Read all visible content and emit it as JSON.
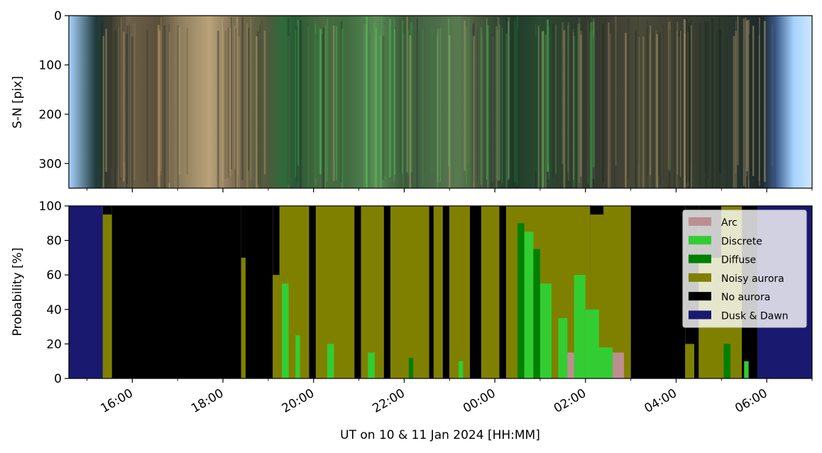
{
  "chart_data": [
    {
      "type": "heatmap",
      "description_role": "keogram",
      "ylabel": "S-N [pix]",
      "ylim": [
        350,
        0
      ],
      "yticks": [
        "0",
        "100",
        "200",
        "300"
      ],
      "x_range_hours": [
        14.6,
        31.0
      ],
      "color_bands": [
        {
          "x": 14.6,
          "color": "#a9d3ff"
        },
        {
          "x": 15.2,
          "color": "#1f3a3a"
        },
        {
          "x": 15.5,
          "color": "#3a3a2e"
        },
        {
          "x": 15.9,
          "color": "#6e6048"
        },
        {
          "x": 16.6,
          "color": "#5a4e3a"
        },
        {
          "x": 17.0,
          "color": "#8a7a5a"
        },
        {
          "x": 17.7,
          "color": "#b9a27a"
        },
        {
          "x": 18.3,
          "color": "#7a6a4e"
        },
        {
          "x": 19.0,
          "color": "#4f5a3c"
        },
        {
          "x": 19.3,
          "color": "#2f6a3a"
        },
        {
          "x": 19.6,
          "color": "#2a5a35"
        },
        {
          "x": 20.2,
          "color": "#4a6a40"
        },
        {
          "x": 20.7,
          "color": "#3f6a3f"
        },
        {
          "x": 21.4,
          "color": "#5a8a55"
        },
        {
          "x": 22.0,
          "color": "#3c5a3a"
        },
        {
          "x": 22.6,
          "color": "#4a6a48"
        },
        {
          "x": 23.2,
          "color": "#5a7a50"
        },
        {
          "x": 23.6,
          "color": "#4a5a40"
        },
        {
          "x": 24.4,
          "color": "#1f3a2a"
        },
        {
          "x": 25.0,
          "color": "#2a4a30"
        },
        {
          "x": 25.8,
          "color": "#2f3a2e"
        },
        {
          "x": 26.4,
          "color": "#3a3c30"
        },
        {
          "x": 27.2,
          "color": "#4a4a38"
        },
        {
          "x": 28.0,
          "color": "#3e4032"
        },
        {
          "x": 29.0,
          "color": "#2e3a2e"
        },
        {
          "x": 29.9,
          "color": "#1e2a2a"
        },
        {
          "x": 30.2,
          "color": "#3a5a8a"
        },
        {
          "x": 30.6,
          "color": "#a9d3ff"
        },
        {
          "x": 31.0,
          "color": "#cfe6ff"
        }
      ]
    },
    {
      "type": "area",
      "stacked": true,
      "ylabel": "Probability [%]",
      "xlabel": "UT on 10 & 11 Jan 2024 [HH:MM]",
      "ylim": [
        0,
        100
      ],
      "yticks": [
        "0",
        "20",
        "40",
        "60",
        "80",
        "100"
      ],
      "xlim_hours": [
        14.6,
        31.0
      ],
      "xticks_hours": [
        16,
        18,
        20,
        22,
        24,
        26,
        28,
        30
      ],
      "xtick_labels": [
        "16:00",
        "18:00",
        "20:00",
        "22:00",
        "00:00",
        "02:00",
        "04:00",
        "06:00"
      ],
      "legend_placement": "top-right",
      "series": [
        {
          "name": "Arc",
          "color": "#bc8f8f"
        },
        {
          "name": "Discrete",
          "color": "#32cd32"
        },
        {
          "name": "Diffuse",
          "color": "#008000"
        },
        {
          "name": "Noisy aurora",
          "color": "#808000"
        },
        {
          "name": "No aurora",
          "color": "#000000"
        },
        {
          "name": "Dusk & Dawn",
          "color": "#191970"
        }
      ],
      "segments": [
        {
          "x0": 14.6,
          "x1": 15.35,
          "class": "Dusk & Dawn",
          "v": 100
        },
        {
          "x0": 15.35,
          "x1": 15.55,
          "class": "Noisy aurora",
          "v": 95
        },
        {
          "x0": 15.55,
          "x1": 18.4,
          "class": "No aurora",
          "v": 100
        },
        {
          "x0": 18.4,
          "x1": 18.5,
          "class": "Noisy aurora",
          "v": 70
        },
        {
          "x0": 18.5,
          "x1": 19.1,
          "class": "No aurora",
          "v": 100
        },
        {
          "x0": 19.1,
          "x1": 19.25,
          "class": "Noisy aurora",
          "v": 60
        },
        {
          "x0": 19.25,
          "x1": 19.9,
          "class": "Noisy aurora",
          "v": 100
        },
        {
          "x0": 19.9,
          "x1": 20.05,
          "class": "No aurora",
          "v": 100
        },
        {
          "x0": 20.05,
          "x1": 20.9,
          "class": "Noisy aurora",
          "v": 100
        },
        {
          "x0": 20.9,
          "x1": 21.05,
          "class": "No aurora",
          "v": 100
        },
        {
          "x0": 21.05,
          "x1": 21.55,
          "class": "Noisy aurora",
          "v": 100
        },
        {
          "x0": 21.55,
          "x1": 21.7,
          "class": "No aurora",
          "v": 100
        },
        {
          "x0": 21.7,
          "x1": 22.55,
          "class": "Noisy aurora",
          "v": 100
        },
        {
          "x0": 22.55,
          "x1": 22.65,
          "class": "No aurora",
          "v": 100
        },
        {
          "x0": 22.65,
          "x1": 22.85,
          "class": "Noisy aurora",
          "v": 100
        },
        {
          "x0": 22.85,
          "x1": 23.0,
          "class": "No aurora",
          "v": 100
        },
        {
          "x0": 23.0,
          "x1": 23.45,
          "class": "Noisy aurora",
          "v": 100
        },
        {
          "x0": 23.45,
          "x1": 23.7,
          "class": "No aurora",
          "v": 100
        },
        {
          "x0": 23.7,
          "x1": 24.1,
          "class": "Noisy aurora",
          "v": 100
        },
        {
          "x0": 24.1,
          "x1": 24.25,
          "class": "No aurora",
          "v": 100
        },
        {
          "x0": 24.25,
          "x1": 26.1,
          "class": "Noisy aurora",
          "v": 100
        },
        {
          "x0": 26.1,
          "x1": 26.4,
          "class": "Noisy aurora",
          "v": 95
        },
        {
          "x0": 26.4,
          "x1": 27.0,
          "class": "Noisy aurora",
          "v": 100
        },
        {
          "x0": 27.0,
          "x1": 28.2,
          "class": "No aurora",
          "v": 100
        },
        {
          "x0": 28.2,
          "x1": 28.4,
          "class": "Noisy aurora",
          "v": 20
        },
        {
          "x0": 28.4,
          "x1": 28.5,
          "class": "No aurora",
          "v": 100
        },
        {
          "x0": 28.5,
          "x1": 29.0,
          "class": "Noisy aurora",
          "v": 70
        },
        {
          "x0": 29.0,
          "x1": 29.45,
          "class": "Noisy aurora",
          "v": 100
        },
        {
          "x0": 29.45,
          "x1": 29.8,
          "class": "No aurora",
          "v": 100
        },
        {
          "x0": 29.8,
          "x1": 31.0,
          "class": "Dusk & Dawn",
          "v": 100
        }
      ],
      "overlays": [
        {
          "x0": 19.3,
          "x1": 19.45,
          "class": "Discrete",
          "v": 55
        },
        {
          "x0": 19.6,
          "x1": 19.7,
          "class": "Discrete",
          "v": 25
        },
        {
          "x0": 20.3,
          "x1": 20.45,
          "class": "Discrete",
          "v": 20
        },
        {
          "x0": 21.2,
          "x1": 21.35,
          "class": "Discrete",
          "v": 15
        },
        {
          "x0": 22.1,
          "x1": 22.2,
          "class": "Diffuse",
          "v": 12
        },
        {
          "x0": 23.2,
          "x1": 23.3,
          "class": "Discrete",
          "v": 10
        },
        {
          "x0": 24.5,
          "x1": 24.65,
          "class": "Diffuse",
          "v": 90
        },
        {
          "x0": 24.65,
          "x1": 24.85,
          "class": "Discrete",
          "v": 85
        },
        {
          "x0": 24.85,
          "x1": 25.0,
          "class": "Diffuse",
          "v": 75
        },
        {
          "x0": 25.0,
          "x1": 25.25,
          "class": "Discrete",
          "v": 55
        },
        {
          "x0": 25.4,
          "x1": 25.6,
          "class": "Discrete",
          "v": 35
        },
        {
          "x0": 25.6,
          "x1": 25.75,
          "class": "Arc",
          "v": 15
        },
        {
          "x0": 25.75,
          "x1": 26.0,
          "class": "Discrete",
          "v": 60
        },
        {
          "x0": 26.0,
          "x1": 26.3,
          "class": "Discrete",
          "v": 40
        },
        {
          "x0": 26.3,
          "x1": 26.6,
          "class": "Discrete",
          "v": 18
        },
        {
          "x0": 26.6,
          "x1": 26.85,
          "class": "Arc",
          "v": 15
        },
        {
          "x0": 29.05,
          "x1": 29.2,
          "class": "Diffuse",
          "v": 20
        },
        {
          "x0": 29.5,
          "x1": 29.6,
          "class": "Discrete",
          "v": 10
        }
      ]
    }
  ]
}
